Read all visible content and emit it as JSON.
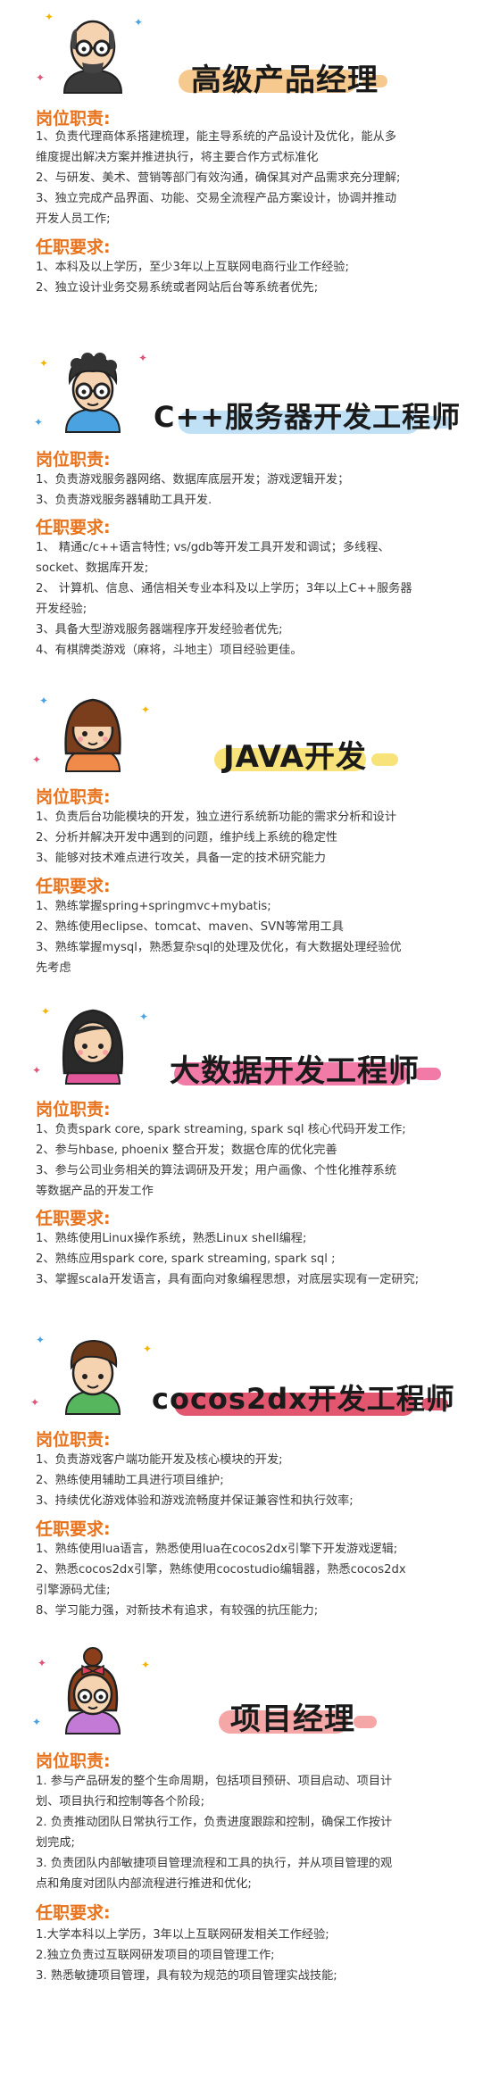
{
  "labels": {
    "duties": "岗位职责:",
    "requirements": "任职要求:"
  },
  "colors": {
    "accent": "#e8731c"
  },
  "sections": [
    {
      "title": "高级产品经理",
      "band_color": "#f6c98f",
      "avatar": "bald-man-with-glasses-icon",
      "duties": [
        "1、负责代理商体系搭建梳理，能主导系统的产品设计及优化，能从多",
        "维度提出解决方案并推进执行，将主要合作方式标准化",
        "2、与研发、美术、营销等部门有效沟通，确保其对产品需求充分理解;",
        "3、独立完成产品界面、功能、交易全流程产品方案设计，协调并推动",
        "开发人员工作;"
      ],
      "requirements": [
        "1、本科及以上学历，至少3年以上互联网电商行业工作经验;",
        "2、独立设计业务交易系统或者网站后台等系统者优先;"
      ]
    },
    {
      "title": "C++服务器开发工程师",
      "band_color": "#bfe0f5",
      "avatar": "curly-hair-man-with-glasses-icon",
      "duties": [
        "1、负责游戏服务器网络、数据库底层开发；游戏逻辑开发；",
        "3、负责游戏服务器辅助工具开发."
      ],
      "requirements": [
        "1、 精通c/c++语言特性;   vs/gdb等开发工具开发和调试；多线程、",
        "socket、数据库开发;",
        "2、 计算机、信息、通信相关专业本科及以上学历；3年以上C++服务器",
        "开发经验;",
        "3、具备大型游戏服务器端程序开发经验者优先;",
        "4、有棋牌类游戏（麻将，斗地主）项目经验更佳。"
      ]
    },
    {
      "title": "JAVA开发",
      "band_color": "#f8e27a",
      "avatar": "girl-with-bangs-icon",
      "duties": [
        "1、负责后台功能模块的开发，独立进行系统新功能的需求分析和设计",
        "2、分析并解决开发中遇到的问题，维护线上系统的稳定性",
        "3、能够对技术难点进行攻关，具备一定的技术研究能力"
      ],
      "requirements": [
        "1、熟练掌握spring+springmvc+mybatis;",
        "2、熟练使用eclipse、tomcat、maven、SVN等常用工具",
        "3、熟练掌握mysql，熟悉复杂sql的处理及优化，有大数据处理经验优",
        "先考虑"
      ]
    },
    {
      "title": "大数据开发工程师",
      "band_color": "#f17aa6",
      "avatar": "girl-with-long-hair-icon",
      "duties": [
        "1、负责spark core, spark streaming, spark sql 核心代码开发工作;",
        "2、参与hbase, phoenix 整合开发；数据仓库的优化完善",
        "3、参与公司业务相关的算法调研及开发；用户画像、个性化推荐系统",
        "等数据产品的开发工作"
      ],
      "requirements": [
        "1、熟练使用Linux操作系统，熟悉Linux shell编程;",
        "2、熟练应用spark core, spark streaming, spark sql ;",
        "3、掌握scala开发语言，具有面向对象编程思想，对底层实现有一定研究;"
      ]
    },
    {
      "title": "cocos2dx开发工程师",
      "band_color": "#e2566f",
      "avatar": "young-man-green-shirt-icon",
      "duties": [
        "1、负责游戏客户端功能开发及核心模块的开发;",
        "2、熟练使用辅助工具进行项目维护;",
        "3、持续优化游戏体验和游戏流畅度并保证兼容性和执行效率;"
      ],
      "requirements": [
        "1、熟练使用lua语言，熟悉使用lua在cocos2dx引擎下开发游戏逻辑;",
        "2、熟悉cocos2dx引擎，熟练使用cocostudio编辑器，熟悉cocos2dx",
        "引擎源码尤佳;",
        "8、学习能力强，对新技术有追求，有较强的抗压能力;"
      ]
    },
    {
      "title": "项目经理",
      "band_color": "#f5a6a6",
      "avatar": "girl-with-bun-and-bow-icon",
      "duties": [
        "1. 参与产品研发的整个生命周期，包括项目预研、项目启动、项目计",
        "划、项目执行和控制等各个阶段;",
        "2. 负责推动团队日常执行工作，负责进度跟踪和控制，确保工作按计",
        "划完成;",
        "3. 负责团队内部敏捷项目管理流程和工具的执行，并从项目管理的观",
        "点和角度对团队内部流程进行推进和优化;"
      ],
      "requirements": [
        "1.大学本科以上学历，3年以上互联网研发相关工作经验;",
        "2.独立负责过互联网研发项目的项目管理工作;",
        "3. 熟悉敏捷项目管理，具有较为规范的项目管理实战技能;"
      ]
    }
  ]
}
